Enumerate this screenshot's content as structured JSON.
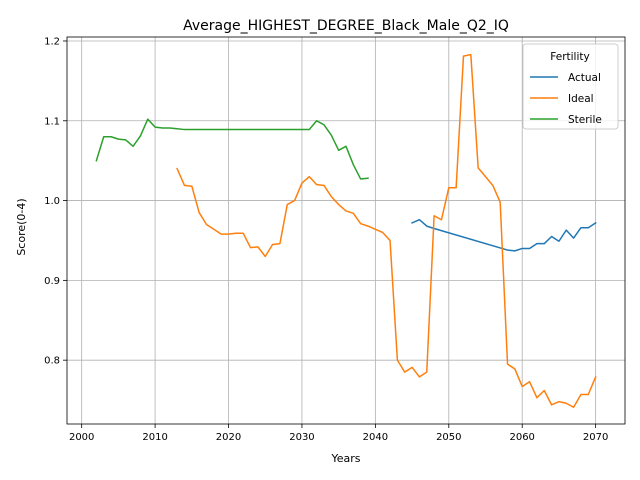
{
  "chart_data": {
    "type": "line",
    "title": "Average_HIGHEST_DEGREE_Black_Male_Q2_IQ",
    "xlabel": "Years",
    "ylabel": "Score(0-4)",
    "xlim": [
      1998,
      2074
    ],
    "ylim": [
      0.72,
      1.205
    ],
    "xticks": [
      2000,
      2010,
      2020,
      2030,
      2040,
      2050,
      2060,
      2070
    ],
    "yticks": [
      0.8,
      0.9,
      1.0,
      1.1,
      1.2
    ],
    "xtick_labels": [
      "2000",
      "2010",
      "2020",
      "2030",
      "2040",
      "2050",
      "2060",
      "2070"
    ],
    "ytick_labels": [
      "0.8",
      "0.9",
      "1.0",
      "1.1",
      "1.2"
    ],
    "grid": true,
    "legend": {
      "title": "Fertility",
      "position": "top-right"
    },
    "series": [
      {
        "name": "Actual",
        "color": "#1f77b4",
        "x": [
          2045,
          2046,
          2047,
          2048,
          2058,
          2059,
          2060,
          2061,
          2062,
          2063,
          2064,
          2065,
          2066,
          2067,
          2068,
          2069,
          2070
        ],
        "y": [
          0.972,
          0.976,
          0.968,
          0.965,
          0.938,
          0.937,
          0.94,
          0.94,
          0.946,
          0.946,
          0.955,
          0.949,
          0.963,
          0.953,
          0.966,
          0.966,
          0.972
        ]
      },
      {
        "name": "Ideal",
        "color": "#ff7f0e",
        "x": [
          2013,
          2014,
          2015,
          2016,
          2017,
          2018,
          2019,
          2020,
          2021,
          2022,
          2023,
          2024,
          2025,
          2026,
          2027,
          2028,
          2029,
          2030,
          2031,
          2032,
          2033,
          2034,
          2035,
          2036,
          2037,
          2038,
          2039,
          2040,
          2041,
          2042,
          2043,
          2044,
          2045,
          2046,
          2047,
          2048,
          2049,
          2050,
          2051,
          2052,
          2053,
          2054,
          2055,
          2056,
          2057,
          2058,
          2059,
          2060,
          2061,
          2062,
          2063,
          2064,
          2065,
          2066,
          2067,
          2068,
          2069,
          2070
        ],
        "y": [
          1.04,
          1.019,
          1.018,
          0.985,
          0.97,
          0.964,
          0.958,
          0.958,
          0.959,
          0.959,
          0.941,
          0.942,
          0.93,
          0.945,
          0.946,
          0.995,
          1.0,
          1.022,
          1.03,
          1.02,
          1.019,
          1.005,
          0.995,
          0.987,
          0.984,
          0.971,
          0.968,
          0.964,
          0.96,
          0.95,
          0.8,
          0.785,
          0.791,
          0.779,
          0.785,
          0.981,
          0.976,
          1.016,
          1.016,
          1.181,
          1.183,
          1.041,
          1.03,
          1.019,
          0.998,
          0.795,
          0.789,
          0.767,
          0.773,
          0.753,
          0.762,
          0.744,
          0.748,
          0.746,
          0.741,
          0.757,
          0.757,
          0.779
        ]
      },
      {
        "name": "Sterile",
        "color": "#2ca02c",
        "x": [
          2002,
          2003,
          2004,
          2005,
          2006,
          2007,
          2008,
          2009,
          2010,
          2011,
          2012,
          2013,
          2014,
          2015,
          2016,
          2017,
          2018,
          2019,
          2020,
          2021,
          2022,
          2023,
          2024,
          2025,
          2026,
          2027,
          2028,
          2029,
          2030,
          2031,
          2032,
          2033,
          2034,
          2035,
          2036,
          2037,
          2038,
          2039
        ],
        "y": [
          1.05,
          1.08,
          1.08,
          1.077,
          1.076,
          1.068,
          1.081,
          1.102,
          1.092,
          1.091,
          1.091,
          1.09,
          1.089,
          1.089,
          1.089,
          1.089,
          1.089,
          1.089,
          1.089,
          1.089,
          1.089,
          1.089,
          1.089,
          1.089,
          1.089,
          1.089,
          1.089,
          1.089,
          1.089,
          1.089,
          1.1,
          1.095,
          1.082,
          1.063,
          1.068,
          1.045,
          1.027,
          1.028
        ]
      }
    ]
  }
}
